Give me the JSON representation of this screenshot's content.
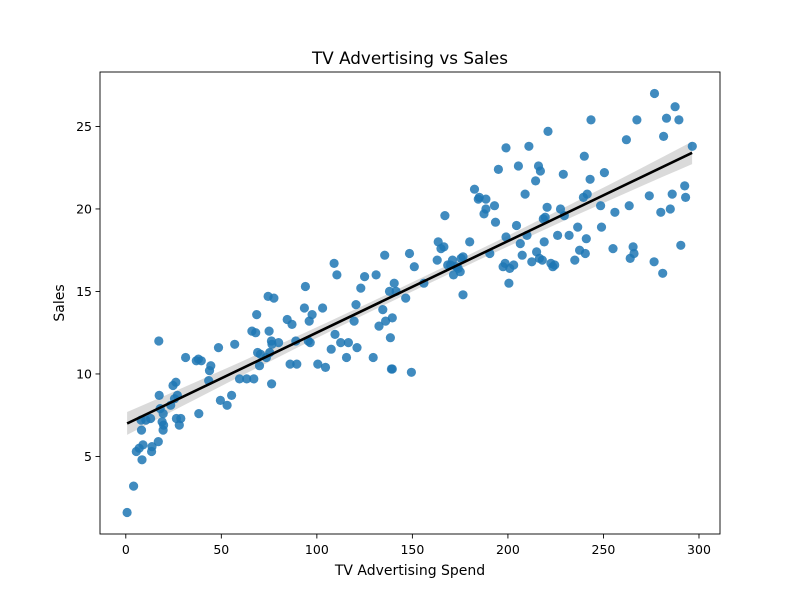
{
  "chart_data": {
    "type": "scatter",
    "title": "TV Advertising vs Sales",
    "xlabel": "TV Advertising Spend",
    "ylabel": "Sales",
    "xlim": [
      -13.5,
      311
    ],
    "ylim": [
      0.3,
      28.3
    ],
    "xticks": [
      "0",
      "50",
      "100",
      "150",
      "200",
      "250",
      "300"
    ],
    "yticks": [
      "5",
      "10",
      "15",
      "20",
      "25"
    ],
    "grid": false,
    "colors": {
      "points": "#1f77b4",
      "fit_line": "#000000",
      "confidence_band": "#d3d3d3"
    },
    "fit_line": {
      "x": [
        0.7,
        296.4
      ],
      "y": [
        7.0,
        23.4
      ]
    },
    "points": [
      [
        0.7,
        1.6
      ],
      [
        4.1,
        3.2
      ],
      [
        5.5,
        5.3
      ],
      [
        7.0,
        5.5
      ],
      [
        8.5,
        4.8
      ],
      [
        9.0,
        5.7
      ],
      [
        8.2,
        6.6
      ],
      [
        8.0,
        7.2
      ],
      [
        10.5,
        7.2
      ],
      [
        13.0,
        7.3
      ],
      [
        13.5,
        5.3
      ],
      [
        13.7,
        5.6
      ],
      [
        17.0,
        5.9
      ],
      [
        17.5,
        8.7
      ],
      [
        18.0,
        7.9
      ],
      [
        19.0,
        7.1
      ],
      [
        19.5,
        6.6
      ],
      [
        19.6,
        7.6
      ],
      [
        19.8,
        6.9
      ],
      [
        17.3,
        12.0
      ],
      [
        23.5,
        8.1
      ],
      [
        24.7,
        9.3
      ],
      [
        25.5,
        8.5
      ],
      [
        26.2,
        9.5
      ],
      [
        26.5,
        7.3
      ],
      [
        27.0,
        8.7
      ],
      [
        28.0,
        6.9
      ],
      [
        28.8,
        7.3
      ],
      [
        31.3,
        11.0
      ],
      [
        36.9,
        10.8
      ],
      [
        38.0,
        10.9
      ],
      [
        38.2,
        7.6
      ],
      [
        39.5,
        10.8
      ],
      [
        43.4,
        9.6
      ],
      [
        43.8,
        10.2
      ],
      [
        44.5,
        10.5
      ],
      [
        48.5,
        11.6
      ],
      [
        49.5,
        8.4
      ],
      [
        53.0,
        8.1
      ],
      [
        55.4,
        8.7
      ],
      [
        57.0,
        11.8
      ],
      [
        59.5,
        9.7
      ],
      [
        63.3,
        9.7
      ],
      [
        66.0,
        12.6
      ],
      [
        67.0,
        9.7
      ],
      [
        68.0,
        12.5
      ],
      [
        68.5,
        13.6
      ],
      [
        69.0,
        11.3
      ],
      [
        70.0,
        10.5
      ],
      [
        70.5,
        11.2
      ],
      [
        73.6,
        11.0
      ],
      [
        74.5,
        14.7
      ],
      [
        75.0,
        12.6
      ],
      [
        75.3,
        11.3
      ],
      [
        76.2,
        12.0
      ],
      [
        76.3,
        9.4
      ],
      [
        76.5,
        11.8
      ],
      [
        77.5,
        14.6
      ],
      [
        80.0,
        11.9
      ],
      [
        84.5,
        13.3
      ],
      [
        86.0,
        10.6
      ],
      [
        87.0,
        13.0
      ],
      [
        89.0,
        12.0
      ],
      [
        89.5,
        10.6
      ],
      [
        93.5,
        14.0
      ],
      [
        94.0,
        15.3
      ],
      [
        95.5,
        12.0
      ],
      [
        96.5,
        11.9
      ],
      [
        96.0,
        13.2
      ],
      [
        97.5,
        13.6
      ],
      [
        100.5,
        10.6
      ],
      [
        103.0,
        14.0
      ],
      [
        104.5,
        10.4
      ],
      [
        107.5,
        11.5
      ],
      [
        109.0,
        16.7
      ],
      [
        109.5,
        12.4
      ],
      [
        110.5,
        16.0
      ],
      [
        112.5,
        11.9
      ],
      [
        115.5,
        11.0
      ],
      [
        116.5,
        11.9
      ],
      [
        119.5,
        13.2
      ],
      [
        120.5,
        14.2
      ],
      [
        121.0,
        11.6
      ],
      [
        123.0,
        15.2
      ],
      [
        125.0,
        15.9
      ],
      [
        129.5,
        11.0
      ],
      [
        131.0,
        16.0
      ],
      [
        132.5,
        12.9
      ],
      [
        134.5,
        13.9
      ],
      [
        135.5,
        17.2
      ],
      [
        136.0,
        13.2
      ],
      [
        138.0,
        15.0
      ],
      [
        138.5,
        12.2
      ],
      [
        139.0,
        10.3
      ],
      [
        139.5,
        10.3
      ],
      [
        139.5,
        13.4
      ],
      [
        140.5,
        15.5
      ],
      [
        141.5,
        15.0
      ],
      [
        146.5,
        14.6
      ],
      [
        148.5,
        17.3
      ],
      [
        149.5,
        10.1
      ],
      [
        151.0,
        16.5
      ],
      [
        156.0,
        15.5
      ],
      [
        163.0,
        16.9
      ],
      [
        163.5,
        18.0
      ],
      [
        165.0,
        17.6
      ],
      [
        166.5,
        17.7
      ],
      [
        167.0,
        19.6
      ],
      [
        168.5,
        16.6
      ],
      [
        170.0,
        16.6
      ],
      [
        171.0,
        16.9
      ],
      [
        171.5,
        16.0
      ],
      [
        173.0,
        16.5
      ],
      [
        174.0,
        16.4
      ],
      [
        175.0,
        16.2
      ],
      [
        175.5,
        17.0
      ],
      [
        176.5,
        14.8
      ],
      [
        176.5,
        17.1
      ],
      [
        180.0,
        18.0
      ],
      [
        182.5,
        21.2
      ],
      [
        184.5,
        20.6
      ],
      [
        185.0,
        20.7
      ],
      [
        187.5,
        19.7
      ],
      [
        188.5,
        20.0
      ],
      [
        188.5,
        20.6
      ],
      [
        190.5,
        17.3
      ],
      [
        193.0,
        20.2
      ],
      [
        193.5,
        19.2
      ],
      [
        195.0,
        22.4
      ],
      [
        197.5,
        16.5
      ],
      [
        198.5,
        16.7
      ],
      [
        199.0,
        18.3
      ],
      [
        199.0,
        23.7
      ],
      [
        200.5,
        15.5
      ],
      [
        201.0,
        16.4
      ],
      [
        203.0,
        16.6
      ],
      [
        204.5,
        19.0
      ],
      [
        205.5,
        22.6
      ],
      [
        206.5,
        17.9
      ],
      [
        207.5,
        17.2
      ],
      [
        209.0,
        20.9
      ],
      [
        210.0,
        18.4
      ],
      [
        211.0,
        23.8
      ],
      [
        212.5,
        16.8
      ],
      [
        214.5,
        21.7
      ],
      [
        215.0,
        17.4
      ],
      [
        216.0,
        22.6
      ],
      [
        216.5,
        17.0
      ],
      [
        217.0,
        22.3
      ],
      [
        218.0,
        16.9
      ],
      [
        218.5,
        19.4
      ],
      [
        219.0,
        18.0
      ],
      [
        219.5,
        19.5
      ],
      [
        220.5,
        20.1
      ],
      [
        221.0,
        24.7
      ],
      [
        222.5,
        16.7
      ],
      [
        223.5,
        16.5
      ],
      [
        224.5,
        16.6
      ],
      [
        226.0,
        18.4
      ],
      [
        227.5,
        20.0
      ],
      [
        229.0,
        22.1
      ],
      [
        229.5,
        19.6
      ],
      [
        232.0,
        18.4
      ],
      [
        235.0,
        16.9
      ],
      [
        236.5,
        18.9
      ],
      [
        237.5,
        17.5
      ],
      [
        239.5,
        20.7
      ],
      [
        240.0,
        23.2
      ],
      [
        240.5,
        17.3
      ],
      [
        241.0,
        18.2
      ],
      [
        241.5,
        20.9
      ],
      [
        243.0,
        21.8
      ],
      [
        243.5,
        25.4
      ],
      [
        248.5,
        20.2
      ],
      [
        249.0,
        18.9
      ],
      [
        250.5,
        22.2
      ],
      [
        255.0,
        17.6
      ],
      [
        256.0,
        19.8
      ],
      [
        262.0,
        24.2
      ],
      [
        263.5,
        20.2
      ],
      [
        264.0,
        17.0
      ],
      [
        265.5,
        17.7
      ],
      [
        266.0,
        17.3
      ],
      [
        267.5,
        25.4
      ],
      [
        274.0,
        20.8
      ],
      [
        276.5,
        16.8
      ],
      [
        276.7,
        27.0
      ],
      [
        280.0,
        19.8
      ],
      [
        281.0,
        16.1
      ],
      [
        281.5,
        24.4
      ],
      [
        283.0,
        25.5
      ],
      [
        285.0,
        20.0
      ],
      [
        286.0,
        20.9
      ],
      [
        287.5,
        26.2
      ],
      [
        289.5,
        25.4
      ],
      [
        290.5,
        17.8
      ],
      [
        292.5,
        21.4
      ],
      [
        293.0,
        20.7
      ],
      [
        296.5,
        23.8
      ]
    ]
  }
}
